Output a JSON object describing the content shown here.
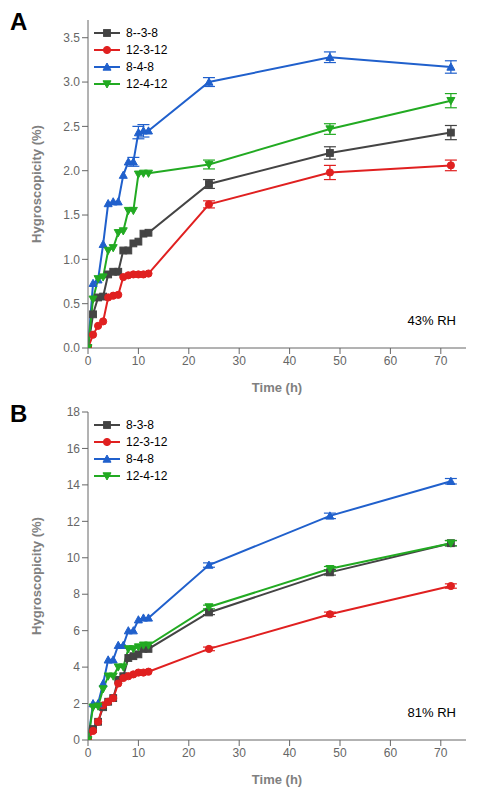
{
  "chart_data": [
    {
      "type": "line",
      "title": "A",
      "annotation": "43% RH",
      "xlabel": "Time (h)",
      "ylabel": "Hygroscopicity (%)",
      "xlim": [
        0,
        75
      ],
      "xticks": [
        0,
        10,
        20,
        30,
        40,
        50,
        60,
        70
      ],
      "ylim": [
        0,
        3.7
      ],
      "yticks": [
        {
          "value": 0.0,
          "label": "0.0"
        },
        0.5,
        {
          "value": 1.0,
          "label": "1.0"
        },
        1.5,
        {
          "value": 2.0,
          "label": "2.0"
        },
        2.5,
        {
          "value": 3.0,
          "label": "3.0"
        },
        3.5
      ],
      "grid": false,
      "legend": "upper left",
      "x": [
        0,
        1,
        2,
        3,
        4,
        5,
        6,
        7,
        8,
        9,
        10,
        11,
        12,
        24,
        48,
        72
      ],
      "series": [
        {
          "name": "8--3-8",
          "color": "#444444",
          "marker": "square",
          "values": [
            0.0,
            0.38,
            0.57,
            0.58,
            0.83,
            0.86,
            0.86,
            1.1,
            1.1,
            1.18,
            1.2,
            1.29,
            1.3,
            1.85,
            2.2,
            2.43
          ],
          "errors": [
            0,
            0,
            0,
            0,
            0,
            0,
            0,
            0,
            0,
            0,
            0,
            0,
            0,
            0.05,
            0.07,
            0.08
          ]
        },
        {
          "name": "12-3-12",
          "color": "#e02020",
          "marker": "circle",
          "values": [
            0.0,
            0.15,
            0.25,
            0.3,
            0.57,
            0.59,
            0.6,
            0.8,
            0.82,
            0.83,
            0.83,
            0.83,
            0.84,
            1.62,
            1.98,
            2.06
          ],
          "errors": [
            0,
            0,
            0,
            0,
            0,
            0,
            0,
            0,
            0,
            0,
            0,
            0,
            0,
            0.04,
            0.08,
            0.06
          ]
        },
        {
          "name": "8-4-8",
          "color": "#2060cc",
          "marker": "triangle_up",
          "values": [
            0.0,
            0.73,
            0.77,
            1.17,
            1.63,
            1.65,
            1.65,
            1.95,
            2.1,
            2.1,
            2.43,
            2.45,
            2.45,
            3.0,
            3.28,
            3.17
          ],
          "errors": [
            0,
            0,
            0,
            0,
            0,
            0,
            0,
            0,
            0,
            0.05,
            0.07,
            0.07,
            0,
            0.05,
            0.06,
            0.07
          ]
        },
        {
          "name": "12-4-12",
          "color": "#22aa22",
          "marker": "triangle_down",
          "values": [
            0.0,
            0.55,
            0.78,
            0.8,
            1.1,
            1.13,
            1.3,
            1.32,
            1.55,
            1.55,
            1.96,
            1.97,
            1.97,
            2.07,
            2.47,
            2.79
          ],
          "errors": [
            0,
            0,
            0,
            0,
            0,
            0,
            0,
            0,
            0,
            0,
            0,
            0,
            0,
            0.05,
            0.06,
            0.08
          ]
        }
      ]
    },
    {
      "type": "line",
      "title": "B",
      "annotation": "81% RH",
      "xlabel": "Time (h)",
      "ylabel": "Hygroscopicity (%)",
      "xlim": [
        0,
        75
      ],
      "xticks": [
        0,
        10,
        20,
        30,
        40,
        50,
        60,
        70
      ],
      "ylim": [
        0,
        18
      ],
      "yticks": [
        0,
        2,
        4,
        6,
        8,
        10,
        12,
        14,
        16,
        18
      ],
      "grid": false,
      "legend": "upper left",
      "x": [
        0,
        1,
        2,
        3,
        4,
        5,
        6,
        7,
        8,
        9,
        10,
        11,
        12,
        24,
        48,
        72
      ],
      "series": [
        {
          "name": "8-3-8",
          "color": "#444444",
          "marker": "square",
          "values": [
            0.0,
            0.6,
            1.0,
            1.8,
            2.1,
            2.3,
            3.3,
            3.5,
            4.5,
            4.6,
            4.7,
            5.0,
            5.0,
            7.0,
            9.2,
            10.8
          ],
          "errors": [
            0,
            0,
            0,
            0,
            0,
            0,
            0,
            0,
            0,
            0,
            0,
            0,
            0,
            0.12,
            0.15,
            0.15
          ]
        },
        {
          "name": "12-3-12",
          "color": "#e02020",
          "marker": "circle",
          "values": [
            0.0,
            0.5,
            1.0,
            1.9,
            2.1,
            2.3,
            3.1,
            3.4,
            3.5,
            3.6,
            3.7,
            3.7,
            3.75,
            5.0,
            6.9,
            8.45
          ],
          "errors": [
            0,
            0,
            0,
            0,
            0,
            0,
            0,
            0,
            0,
            0,
            0,
            0,
            0,
            0.1,
            0.12,
            0.12
          ]
        },
        {
          "name": "8-4-8",
          "color": "#2060cc",
          "marker": "triangle_up",
          "values": [
            0.0,
            2.0,
            2.0,
            3.1,
            4.4,
            4.4,
            5.2,
            5.2,
            6.0,
            6.0,
            6.6,
            6.7,
            6.7,
            9.6,
            12.3,
            14.2
          ],
          "errors": [
            0,
            0,
            0,
            0,
            0,
            0,
            0,
            0,
            0,
            0,
            0,
            0,
            0,
            0.12,
            0.15,
            0.15
          ]
        },
        {
          "name": "12-4-12",
          "color": "#22aa22",
          "marker": "triangle_down",
          "values": [
            0.0,
            1.8,
            1.85,
            2.8,
            3.5,
            3.5,
            4.0,
            4.0,
            5.0,
            5.0,
            5.1,
            5.2,
            5.2,
            7.3,
            9.4,
            10.8
          ],
          "errors": [
            0,
            0,
            0,
            0,
            0,
            0,
            0,
            0,
            0,
            0,
            0,
            0,
            0,
            0.1,
            0.12,
            0.14
          ]
        }
      ]
    }
  ]
}
